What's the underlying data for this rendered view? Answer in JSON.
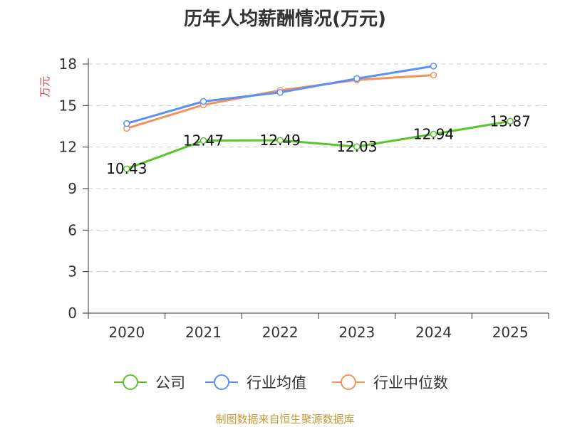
{
  "chart_data": {
    "type": "line",
    "title": "历年人均薪酬情况(万元)",
    "ylabel": "万元",
    "xlabel": "",
    "categories": [
      "2020",
      "2021",
      "2022",
      "2023",
      "2024",
      "2025"
    ],
    "ylim": [
      0,
      18
    ],
    "yticks": [
      0,
      3,
      6,
      9,
      12,
      15,
      18
    ],
    "grid": true,
    "legend_position": "bottom",
    "series": [
      {
        "name": "公司",
        "color": "#5bc42b",
        "values": [
          10.43,
          12.47,
          12.49,
          12.03,
          12.94,
          13.87
        ],
        "show_labels": true
      },
      {
        "name": "行业均值",
        "color": "#5b8ff9",
        "values": [
          13.7,
          15.3,
          15.95,
          16.95,
          17.85,
          null
        ],
        "show_labels": false
      },
      {
        "name": "行业中位数",
        "color": "#f3925a",
        "values": [
          13.35,
          15.05,
          16.1,
          16.85,
          17.2,
          null
        ],
        "show_labels": false
      }
    ]
  },
  "source": "制图数据来自恒生聚源数据库"
}
